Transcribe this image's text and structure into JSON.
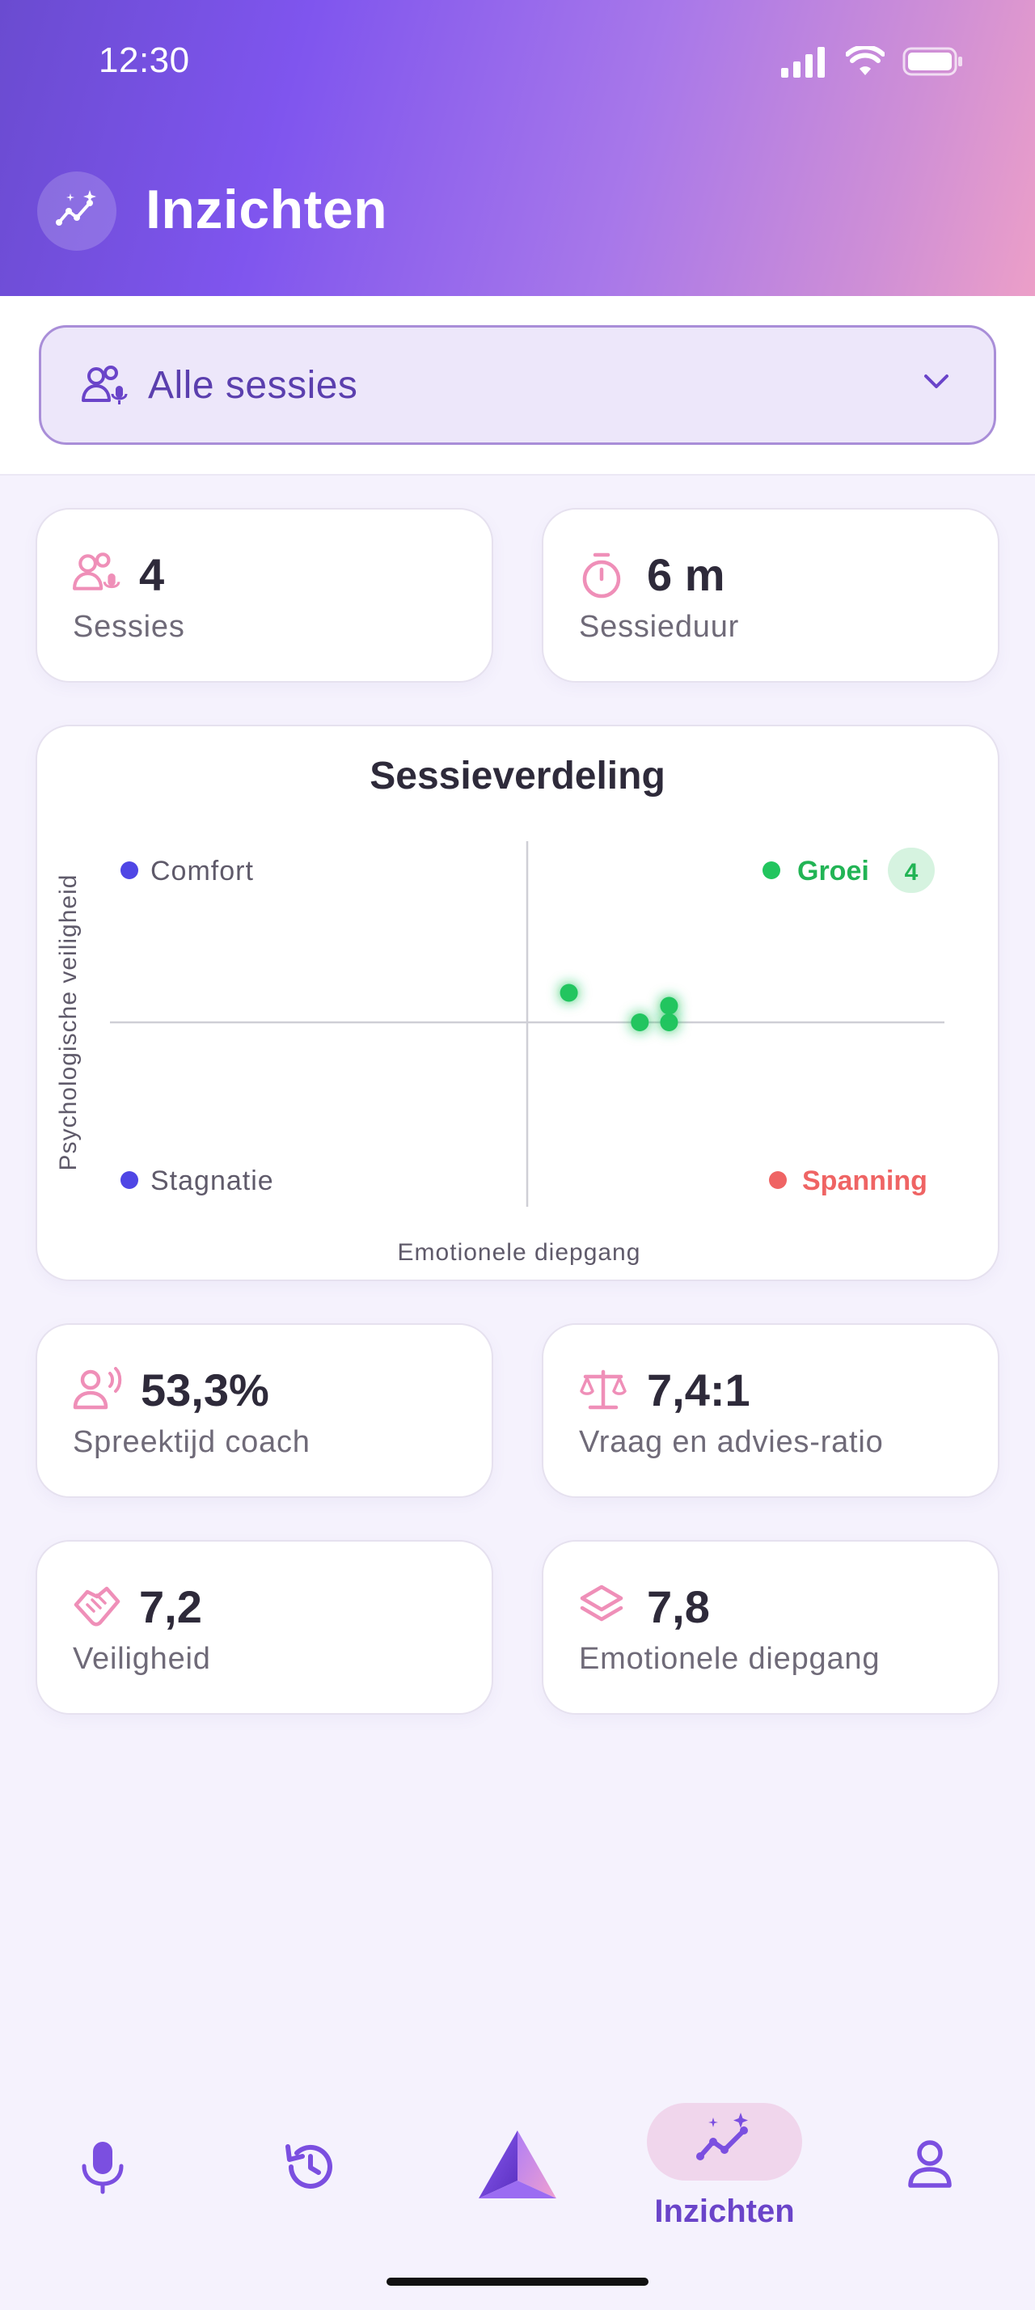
{
  "status_bar": {
    "time": "12:30"
  },
  "header": {
    "title": "Inzichten",
    "icon": "sparkle-trend-icon"
  },
  "filter": {
    "label": "Alle sessies",
    "icon": "people-voice-icon"
  },
  "stats_top": [
    {
      "value": "4",
      "label": "Sessies",
      "icon": "people-voice-icon"
    },
    {
      "value": "6 m",
      "label": "Sessieduur",
      "icon": "stopwatch-icon"
    }
  ],
  "chart_data": {
    "type": "scatter",
    "title": "Sessieverdeling",
    "xlabel": "Emotionele diepgang",
    "ylabel": "Psychologische veiligheid",
    "quadrants": {
      "top_left": "Comfort",
      "top_right": "Groei",
      "bottom_left": "Stagnatie",
      "bottom_right": "Spanning"
    },
    "groei_count": "4",
    "xlim": [
      0,
      10
    ],
    "ylim": [
      0,
      10
    ],
    "points": [
      {
        "x": 5.5,
        "y": 5.8
      },
      {
        "x": 6.35,
        "y": 5.0
      },
      {
        "x": 6.7,
        "y": 5.0
      },
      {
        "x": 6.7,
        "y": 5.45
      }
    ],
    "colors": {
      "comfort": "#4f46e5",
      "groei": "#22c55e",
      "stagnatie": "#4f46e5",
      "spanning": "#ef6464"
    }
  },
  "stats_bottom": [
    {
      "value": "53,3%",
      "label": "Spreektijd coach",
      "icon": "speaking-person-icon"
    },
    {
      "value": "7,4:1",
      "label": "Vraag en advies-ratio",
      "icon": "scale-icon"
    },
    {
      "value": "7,2",
      "label": "Veiligheid",
      "icon": "handshake-icon"
    },
    {
      "value": "7,8",
      "label": "Emotionele diepgang",
      "icon": "layers-icon"
    }
  ],
  "nav": {
    "active_label": "Inzichten",
    "items": [
      "microphone-icon",
      "history-icon",
      "app-logo-icon",
      "insights-icon",
      "profile-icon"
    ]
  }
}
